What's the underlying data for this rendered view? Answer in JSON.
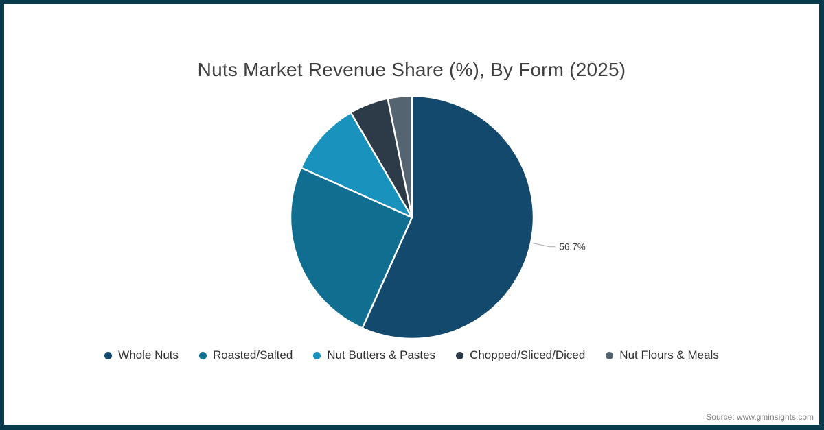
{
  "chart": {
    "source": "Source: www.gminsights.com"
  },
  "chart_data": {
    "type": "pie",
    "title": "Nuts Market Revenue Share (%), By Form (2025)",
    "categories": [
      "Whole Nuts",
      "Roasted/Salted",
      "Nut Butters & Pastes",
      "Chopped/Sliced/Diced",
      "Nut Flours & Meals"
    ],
    "values": [
      56.7,
      25.0,
      9.9,
      5.2,
      3.2
    ],
    "colors": [
      "#14496E",
      "#106E91",
      "#1A92BE",
      "#2D3A47",
      "#546470"
    ],
    "data_labels": [
      {
        "index": 0,
        "text": "56.7%"
      }
    ],
    "start_angle_deg": 0,
    "direction": "clockwise",
    "legend_position": "bottom",
    "slice_border_color": "#FFFFFF",
    "leader_line_color": "#A8A8A8",
    "label_text_color": "#404040",
    "frame_border_color": "#073B4C"
  }
}
